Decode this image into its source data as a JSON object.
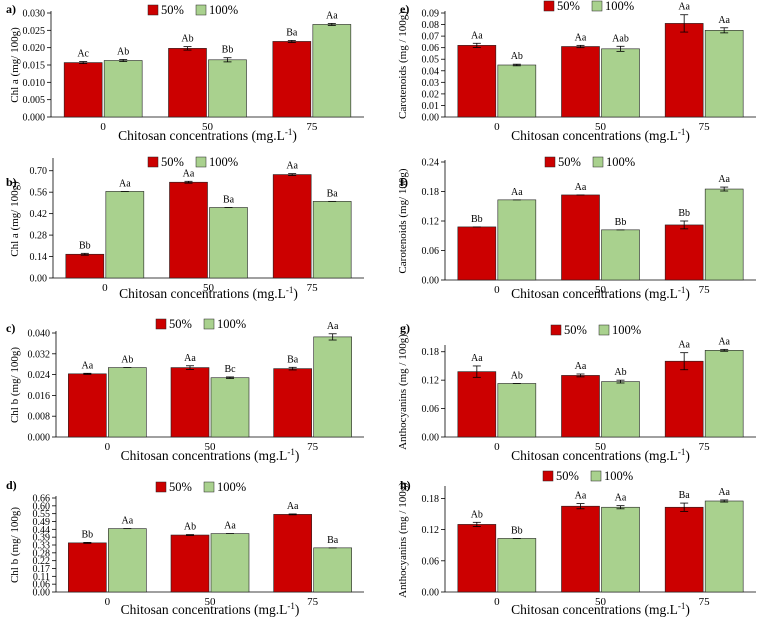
{
  "legend": {
    "series": [
      {
        "name": "50%",
        "color": "#cc0000"
      },
      {
        "name": "100%",
        "color": "#a9d18e"
      }
    ]
  },
  "x_label_main": "Chitosan concentrations (mg.L",
  "x_label_sup": "-1",
  "x_label_end": ")",
  "chart_data": [
    {
      "panel": "a)",
      "type": "bar",
      "ylabel": "Chl a (mg/ 100g)",
      "categories": [
        "0",
        "50",
        "75"
      ],
      "ylim": [
        0,
        0.03
      ],
      "step": 0.005,
      "decimals": 3,
      "series": [
        {
          "name": "50%",
          "values": [
            0.0157,
            0.0198,
            0.0218
          ],
          "errors": [
            0.0003,
            0.0005,
            0.0003
          ],
          "labels": [
            "Ac",
            "Ab",
            "Ba"
          ]
        },
        {
          "name": "100%",
          "values": [
            0.0163,
            0.0165,
            0.0267
          ],
          "errors": [
            0.0003,
            0.0006,
            0.0003
          ],
          "labels": [
            "Ab",
            "Bb",
            "Aa"
          ]
        }
      ]
    },
    {
      "panel": "b)",
      "type": "bar",
      "ylabel": "Chl a (mg/ 100g)",
      "categories": [
        "0",
        "50",
        "75"
      ],
      "ylim": [
        0,
        0.77
      ],
      "step": 0.14,
      "decimals": 2,
      "series": [
        {
          "name": "50%",
          "values": [
            0.155,
            0.625,
            0.675
          ],
          "errors": [
            0.006,
            0.006,
            0.006
          ],
          "labels": [
            "Bb",
            "Aa",
            "Aa"
          ]
        },
        {
          "name": "100%",
          "values": [
            0.565,
            0.46,
            0.5
          ],
          "errors": [
            0,
            0,
            0
          ],
          "labels": [
            "Aa",
            "Ba",
            "Ba"
          ]
        }
      ]
    },
    {
      "panel": "c)",
      "type": "bar",
      "ylabel": "Chl b (mg/ 100g)",
      "categories": [
        "0",
        "50",
        "75"
      ],
      "ylim": [
        0,
        0.04
      ],
      "step": 0.008,
      "decimals": 3,
      "series": [
        {
          "name": "50%",
          "values": [
            0.0243,
            0.0267,
            0.0263
          ],
          "errors": [
            0.0002,
            0.0007,
            0.0005
          ],
          "labels": [
            "Aa",
            "Aa",
            "Ba"
          ]
        },
        {
          "name": "100%",
          "values": [
            0.0267,
            0.0228,
            0.0385
          ],
          "errors": [
            0,
            0.0003,
            0.0012
          ],
          "labels": [
            "Ab",
            "Bc",
            "Aa"
          ]
        }
      ]
    },
    {
      "panel": "d)",
      "type": "bar",
      "ylabel": "Chl b (mg/ 100g)",
      "categories": [
        "0",
        "50",
        "75"
      ],
      "ylim": [
        0,
        0.66
      ],
      "step": 0.055,
      "decimals": 2,
      "series": [
        {
          "name": "50%",
          "values": [
            0.345,
            0.4,
            0.545
          ],
          "errors": [
            0.003,
            0.003,
            0.003
          ],
          "labels": [
            "Bb",
            "Ab",
            "Aa"
          ]
        },
        {
          "name": "100%",
          "values": [
            0.445,
            0.41,
            0.31
          ],
          "errors": [
            0,
            0,
            0
          ],
          "labels": [
            "Aa",
            "Aa",
            "Ba"
          ]
        }
      ]
    },
    {
      "panel": "e)",
      "type": "bar",
      "ylabel": "Carotenoids (mg / 100g)",
      "categories": [
        "0",
        "50",
        "75"
      ],
      "ylim": [
        0,
        0.09
      ],
      "step": 0.01,
      "decimals": 2,
      "series": [
        {
          "name": "50%",
          "values": [
            0.062,
            0.061,
            0.081
          ],
          "errors": [
            0.0018,
            0.001,
            0.0075
          ],
          "labels": [
            "Aa",
            "Aa",
            "Aa"
          ]
        },
        {
          "name": "100%",
          "values": [
            0.045,
            0.059,
            0.075
          ],
          "errors": [
            0.0007,
            0.0022,
            0.0022
          ],
          "labels": [
            "Ab",
            "Aab",
            "Aa"
          ]
        }
      ]
    },
    {
      "panel": "f)",
      "type": "bar",
      "ylabel": "Carotenoids (mg/ 100g)",
      "categories": [
        "0",
        "50",
        "75"
      ],
      "ylim": [
        0,
        0.24
      ],
      "step": 0.06,
      "decimals": 2,
      "series": [
        {
          "name": "50%",
          "values": [
            0.108,
            0.173,
            0.112
          ],
          "errors": [
            0,
            0,
            0.008
          ],
          "labels": [
            "Bb",
            "Aa",
            "Bb"
          ]
        },
        {
          "name": "100%",
          "values": [
            0.163,
            0.102,
            0.185
          ],
          "errors": [
            0,
            0,
            0.004
          ],
          "labels": [
            "Aa",
            "Bb",
            "Aa"
          ]
        }
      ]
    },
    {
      "panel": "g)",
      "type": "bar",
      "ylabel": "Anthocyanins (mg / 100g)",
      "categories": [
        "0",
        "50",
        "75"
      ],
      "ylim": [
        0,
        0.19
      ],
      "step": 0.06,
      "decimals": 2,
      "series": [
        {
          "name": "50%",
          "values": [
            0.138,
            0.13,
            0.16
          ],
          "errors": [
            0.012,
            0.003,
            0.018
          ],
          "labels": [
            "Aa",
            "Aa",
            "Aa"
          ]
        },
        {
          "name": "100%",
          "values": [
            0.113,
            0.117,
            0.183
          ],
          "errors": [
            0,
            0.003,
            0.002
          ],
          "labels": [
            "Ab",
            "Ab",
            "Aa"
          ]
        }
      ]
    },
    {
      "panel": "h)",
      "type": "bar",
      "ylabel": "Anthocyanins (mg / 100g)",
      "categories": [
        "0",
        "50",
        "75"
      ],
      "ylim": [
        0,
        0.2
      ],
      "step": 0.06,
      "decimals": 2,
      "series": [
        {
          "name": "50%",
          "values": [
            0.13,
            0.165,
            0.163
          ],
          "errors": [
            0.004,
            0.005,
            0.008
          ],
          "labels": [
            "Ab",
            "Aa",
            "Ba"
          ]
        },
        {
          "name": "100%",
          "values": [
            0.103,
            0.163,
            0.175
          ],
          "errors": [
            0,
            0.003,
            0.002
          ],
          "labels": [
            "Bb",
            "Aa",
            "Aa"
          ]
        }
      ]
    }
  ]
}
